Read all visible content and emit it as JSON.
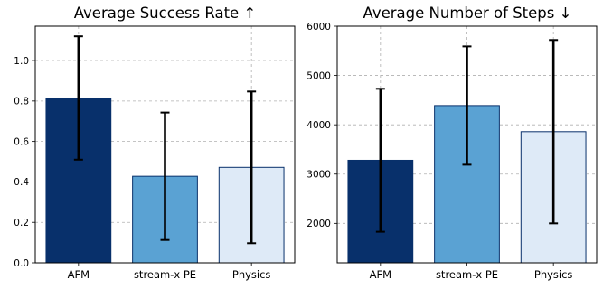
{
  "chart_data": [
    {
      "type": "bar",
      "title": "Average Success Rate ↑",
      "xlabel": "",
      "ylabel": "",
      "categories": [
        "AFM",
        "stream-x PE",
        "Physics"
      ],
      "values": [
        0.815,
        0.428,
        0.472
      ],
      "error": [
        0.305,
        0.315,
        0.375
      ],
      "ylim": [
        0,
        1.17
      ],
      "yticks": [
        0.0,
        0.2,
        0.4,
        0.6,
        0.8,
        1.0
      ],
      "ytick_labels": [
        "0.0",
        "0.2",
        "0.4",
        "0.6",
        "0.8",
        "1.0"
      ],
      "grid": true,
      "colors": [
        "#08306b",
        "#5aa2d3",
        "#deeaf7"
      ],
      "edgecolor": "#08306b"
    },
    {
      "type": "bar",
      "title": "Average Number of Steps ↓",
      "xlabel": "",
      "ylabel": "",
      "categories": [
        "AFM",
        "stream-x PE",
        "Physics"
      ],
      "values": [
        3280,
        4390,
        3860
      ],
      "error": [
        1450,
        1200,
        1860
      ],
      "ylim": [
        1200,
        6000
      ],
      "yticks": [
        2000,
        3000,
        4000,
        5000,
        6000
      ],
      "ytick_labels": [
        "2000",
        "3000",
        "4000",
        "5000",
        "6000"
      ],
      "grid": true,
      "colors": [
        "#08306b",
        "#5aa2d3",
        "#deeaf7"
      ],
      "edgecolor": "#08306b"
    }
  ]
}
